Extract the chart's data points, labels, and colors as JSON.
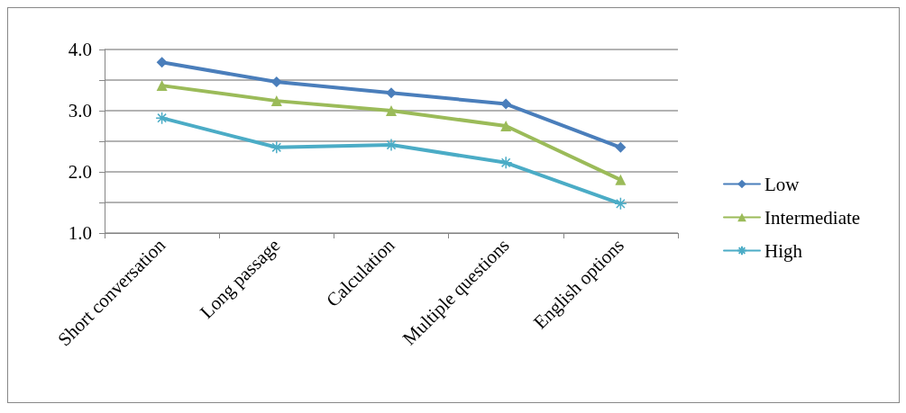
{
  "chart_data": {
    "type": "line",
    "categories": [
      "Short conversation",
      "Long passage",
      "Calculation",
      "Multiple questions",
      "English options"
    ],
    "series": [
      {
        "name": "Low",
        "color": "#4a7ebb",
        "marker": "diamond",
        "values": [
          3.79,
          3.47,
          3.29,
          3.11,
          2.4
        ]
      },
      {
        "name": "Intermediate",
        "color": "#9bbb59",
        "marker": "triangle",
        "values": [
          3.41,
          3.16,
          3.0,
          2.75,
          1.87
        ]
      },
      {
        "name": "High",
        "color": "#4bacc6",
        "marker": "cross",
        "values": [
          2.88,
          2.4,
          2.44,
          2.15,
          1.48
        ]
      }
    ],
    "ylim": [
      1,
      4
    ],
    "yticks": [
      {
        "value": 1,
        "label": "1.0"
      },
      {
        "value": 1.5,
        "label": null
      },
      {
        "value": 2,
        "label": "2.0"
      },
      {
        "value": 2.5,
        "label": null
      },
      {
        "value": 3,
        "label": "3.0"
      },
      {
        "value": 3.5,
        "label": null
      },
      {
        "value": 4,
        "label": "4.0"
      }
    ],
    "grid": "y",
    "legend": "right"
  }
}
